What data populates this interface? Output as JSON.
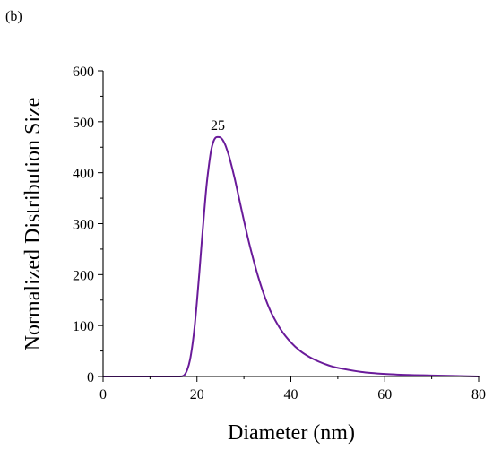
{
  "panel_label": "(b)",
  "chart_data": {
    "type": "line",
    "title": "",
    "xlabel": "Diameter (nm)",
    "ylabel": "Normalized Distribution Size",
    "xlim": [
      0,
      80
    ],
    "ylim": [
      0,
      600
    ],
    "x_ticks": [
      0,
      20,
      40,
      60,
      80
    ],
    "y_ticks": [
      0,
      100,
      200,
      300,
      400,
      500,
      600
    ],
    "x_minor_step": 10,
    "y_minor_step": 50,
    "grid": false,
    "line_color": "#6a1b9a",
    "series": [
      {
        "x": [
          0,
          10,
          16,
          17,
          17.5,
          18,
          18.5,
          19,
          19.5,
          20,
          20.5,
          21,
          21.5,
          22,
          22.5,
          23,
          23.5,
          24,
          24.5,
          25,
          25.5,
          26,
          26.5,
          27,
          28,
          29,
          30,
          31,
          32,
          33,
          34,
          35,
          36,
          38,
          40,
          42,
          44,
          46,
          48,
          50,
          55,
          60,
          65,
          70,
          75,
          80
        ],
        "y": [
          0,
          0,
          0,
          1,
          5,
          15,
          32,
          60,
          98,
          148,
          203,
          262,
          318,
          371,
          411,
          443,
          461,
          469,
          470,
          469,
          464,
          455,
          442,
          427,
          390,
          348,
          306,
          266,
          230,
          197,
          168,
          143,
          122,
          90,
          67,
          50,
          38,
          29,
          22,
          17,
          9,
          5,
          3,
          2,
          1,
          0
        ]
      }
    ],
    "annotations": [
      {
        "text": "25",
        "x": 25,
        "y": 470
      }
    ]
  }
}
